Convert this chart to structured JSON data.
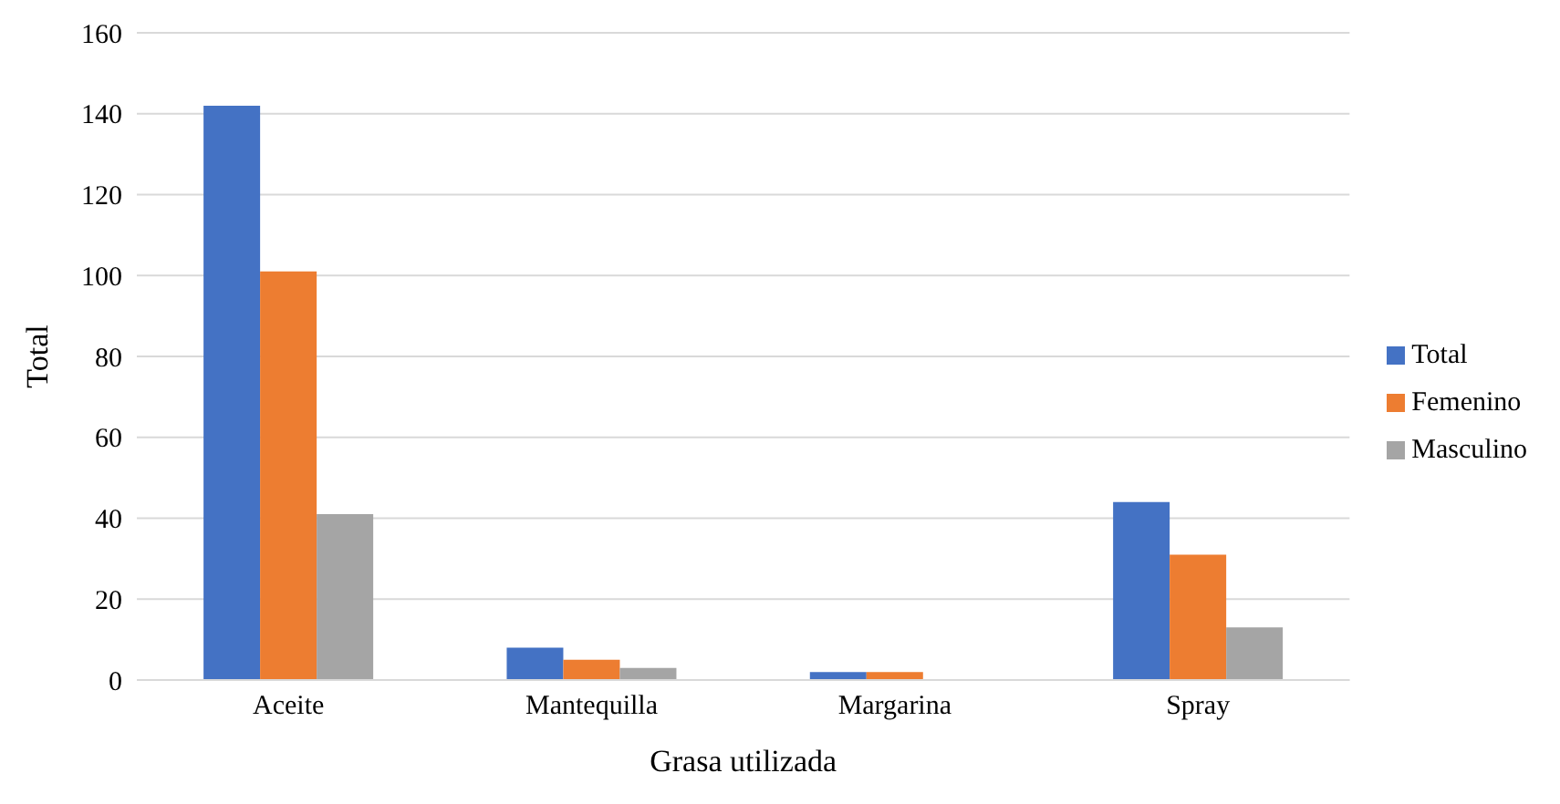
{
  "chart_data": {
    "type": "bar",
    "xlabel": "Grasa utilizada",
    "ylabel": "Total",
    "categories": [
      "Aceite",
      "Mantequilla",
      "Margarina",
      "Spray"
    ],
    "series": [
      {
        "name": "Total",
        "color": "#4472c4",
        "values": [
          142,
          8,
          2,
          44
        ]
      },
      {
        "name": "Femenino",
        "color": "#ed7d31",
        "values": [
          101,
          5,
          2,
          31
        ]
      },
      {
        "name": "Masculino",
        "color": "#a5a5a5",
        "values": [
          41,
          3,
          0,
          13
        ]
      }
    ],
    "ylim": [
      0,
      160
    ],
    "yticks": [
      0,
      20,
      40,
      60,
      80,
      100,
      120,
      140,
      160
    ],
    "grid": "y",
    "legend": "right"
  }
}
